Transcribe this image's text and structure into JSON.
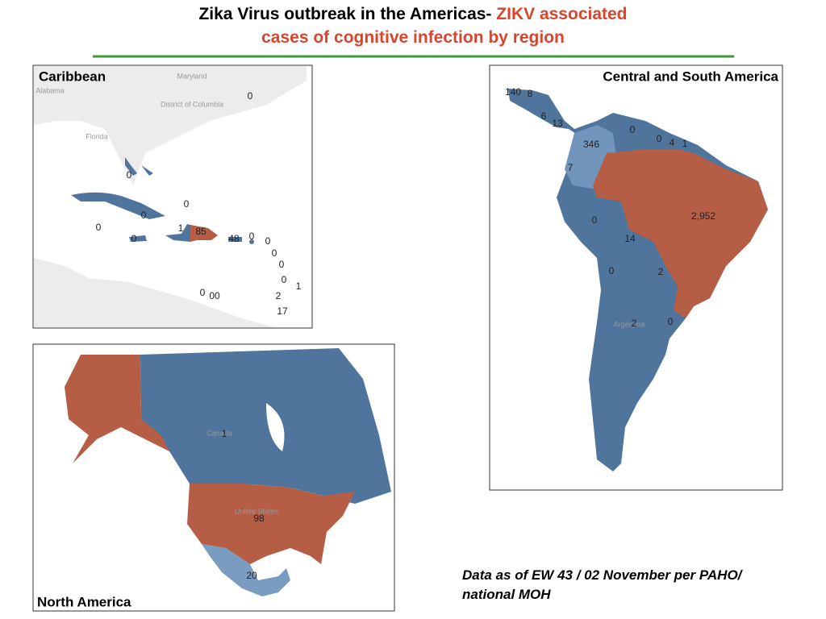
{
  "header": {
    "title_black": "Zika Virus outbreak in the Americas-",
    "title_red_line1": "ZIKV associated",
    "title_red_line2": "cases of cognitive infection by region"
  },
  "caribbean": {
    "title": "Caribbean",
    "place_names": [
      "Maryland",
      "Alabama",
      "District of Columbia",
      "Florida"
    ],
    "labels": [
      "0",
      "0",
      "0",
      "0",
      "0",
      "1",
      "85",
      "0",
      "48",
      "0",
      "0",
      "0",
      "0",
      "0",
      "1",
      "0",
      "00",
      "2",
      "17"
    ]
  },
  "central_south_america": {
    "title": "Central and South America",
    "place_names": [
      "Argentina"
    ],
    "labels": [
      "140",
      "8",
      "6",
      "13",
      "0",
      "346",
      "0",
      "4",
      "1",
      "7",
      "0",
      "2,952",
      "14",
      "0",
      "2",
      "2",
      "0"
    ]
  },
  "north_america": {
    "title": "North America",
    "place_names": [
      "Canada",
      "United States"
    ],
    "labels": [
      "1",
      "98",
      "20"
    ]
  },
  "footnote": {
    "line1": "Data as of EW 43 / 02 November per PAHO/",
    "line2": "national MOH"
  }
}
